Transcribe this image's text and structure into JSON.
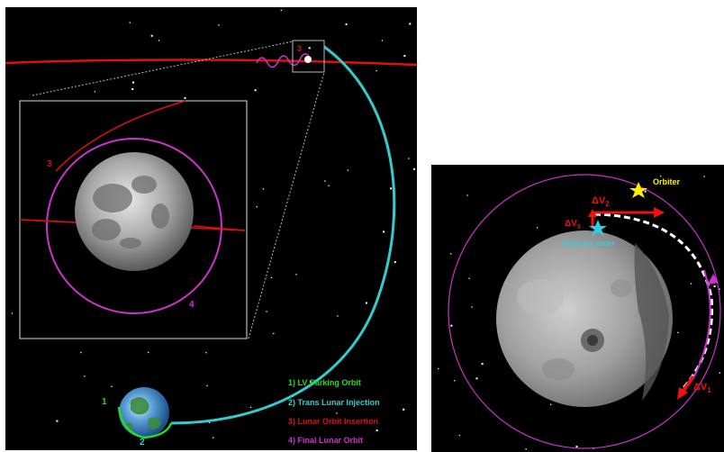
{
  "colors": {
    "background": "#000000",
    "page": "#ffffff",
    "lv_parking": "#22dd22",
    "trans_lunar": "#33cccc",
    "lunar_insertion": "#dd1111",
    "final_lunar": "#cc33cc",
    "frame": "#bbbbbb",
    "orbiter": "#ffee00",
    "passive_lander": "#33ccdd",
    "burn": "#ee1111"
  },
  "left_panel": {
    "legend": {
      "item1": "1) LV Parking Orbit",
      "item2": "2) Trans Lunar Injection",
      "item3": "3) Lunar Orbit Insertion",
      "item4": "4) Final Lunar Orbit"
    },
    "markers": {
      "earth_1": "1",
      "earth_2": "2",
      "small_3": "3",
      "inset_3": "3",
      "inset_4": "4"
    }
  },
  "right_panel": {
    "orbiter_label": "Orbiter",
    "lander_label": "Passive Lander",
    "dv2": "ΔV",
    "dv2_sub": "2",
    "dv3": "ΔV",
    "dv3_sub": "3",
    "dv1": "ΔV",
    "dv1_sub": "1"
  }
}
